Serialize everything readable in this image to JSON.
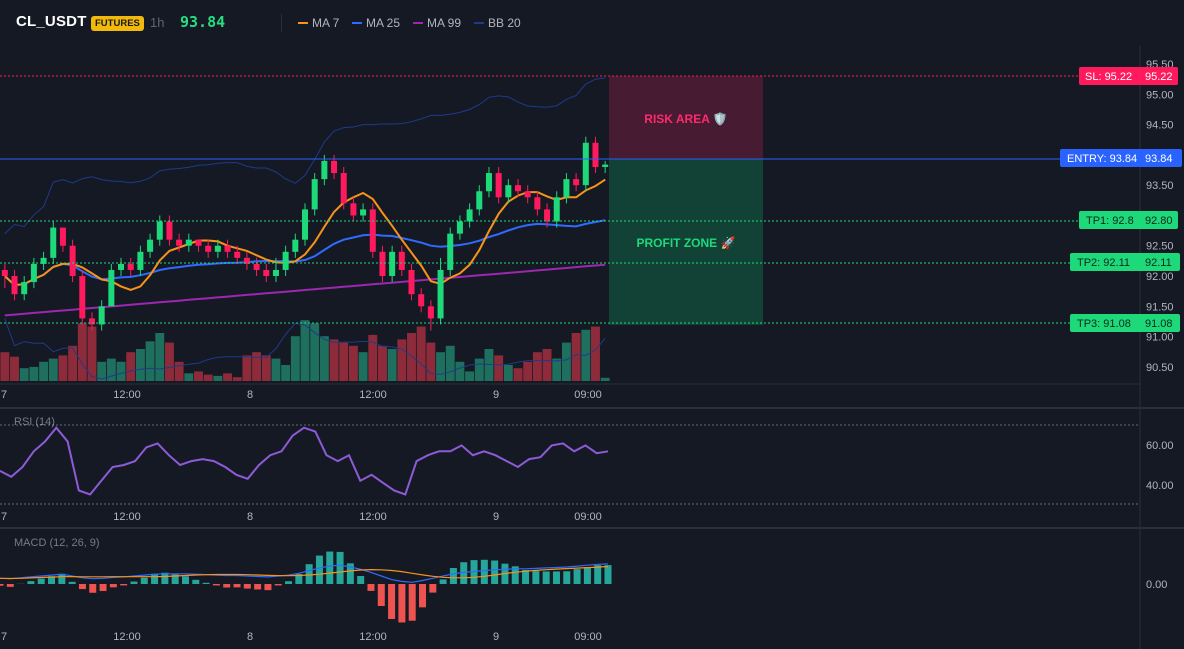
{
  "header": {
    "symbol": "CL_USDT",
    "badge": "FUTURES",
    "timeframe": "1h",
    "last_price": "93.84",
    "legend": [
      {
        "label": "MA 7",
        "color": "#f7931a"
      },
      {
        "label": "MA 25",
        "color": "#2f6bff"
      },
      {
        "label": "MA 99",
        "color": "#9c27b0"
      },
      {
        "label": "BB 20",
        "color": "#1e3a8a"
      }
    ]
  },
  "price_axis": {
    "ticks": [
      "95.50",
      "95.00",
      "94.50",
      "94.00",
      "93.50",
      "93.00",
      "92.50",
      "92.00",
      "91.50",
      "91.00",
      "90.50"
    ]
  },
  "time_axis": {
    "labels": [
      "7",
      "12:00",
      "8",
      "12:00",
      "9",
      "09:00"
    ]
  },
  "trade_levels": {
    "sl": {
      "label": "SL: 95.22",
      "value": "95.22",
      "color": "#ff1a5e"
    },
    "entry": {
      "label": "ENTRY: 93.84",
      "value": "93.84",
      "color": "#2962ff"
    },
    "tp1": {
      "label": "TP1: 92.8",
      "value": "92.80",
      "color": "#1ed97a"
    },
    "tp2": {
      "label": "TP2: 92.11",
      "value": "92.11",
      "color": "#1ed97a"
    },
    "tp3": {
      "label": "TP3: 91.08",
      "value": "91.08",
      "color": "#1ed97a"
    }
  },
  "zones": {
    "risk_label": "RISK AREA 🛡️",
    "profit_label": "PROFIT ZONE 🚀"
  },
  "rsi": {
    "title": "RSI (14)",
    "ticks": [
      "60.00",
      "40.00"
    ]
  },
  "macd": {
    "title": "MACD (12, 26, 9)",
    "ticks": [
      "0.00"
    ]
  },
  "colors": {
    "up": "#1ed97a",
    "down": "#ff1a5e",
    "vol_up": "#1f6f5f",
    "vol_down": "#8e2b3a",
    "bg": "#151924"
  },
  "chart_data": {
    "type": "candlestick",
    "candles": [
      [
        92.1,
        92.0,
        92.2,
        91.8
      ],
      [
        92.0,
        91.7,
        92.1,
        91.6
      ],
      [
        91.7,
        91.9,
        92.0,
        91.6
      ],
      [
        91.9,
        92.2,
        92.3,
        91.8
      ],
      [
        92.2,
        92.3,
        92.4,
        92.1
      ],
      [
        92.3,
        92.8,
        92.9,
        92.2
      ],
      [
        92.8,
        92.5,
        92.8,
        92.4
      ],
      [
        92.5,
        92.0,
        92.6,
        91.9
      ],
      [
        92.0,
        91.3,
        92.1,
        91.2
      ],
      [
        91.3,
        91.2,
        91.4,
        91.1
      ],
      [
        91.2,
        91.5,
        91.6,
        91.1
      ],
      [
        91.5,
        92.1,
        92.2,
        91.5
      ],
      [
        92.1,
        92.2,
        92.3,
        92.0
      ],
      [
        92.2,
        92.1,
        92.3,
        92.0
      ],
      [
        92.1,
        92.4,
        92.5,
        92.0
      ],
      [
        92.4,
        92.6,
        92.7,
        92.3
      ],
      [
        92.6,
        92.9,
        93.0,
        92.5
      ],
      [
        92.9,
        92.6,
        93.0,
        92.5
      ],
      [
        92.6,
        92.5,
        92.7,
        92.4
      ],
      [
        92.5,
        92.6,
        92.7,
        92.4
      ],
      [
        92.6,
        92.5,
        92.6,
        92.4
      ],
      [
        92.5,
        92.4,
        92.6,
        92.3
      ],
      [
        92.4,
        92.5,
        92.6,
        92.3
      ],
      [
        92.5,
        92.4,
        92.6,
        92.3
      ],
      [
        92.4,
        92.3,
        92.5,
        92.2
      ],
      [
        92.3,
        92.2,
        92.4,
        92.1
      ],
      [
        92.2,
        92.1,
        92.3,
        92.0
      ],
      [
        92.1,
        92.0,
        92.2,
        91.9
      ],
      [
        92.0,
        92.1,
        92.3,
        91.9
      ],
      [
        92.1,
        92.4,
        92.5,
        92.0
      ],
      [
        92.4,
        92.6,
        92.7,
        92.3
      ],
      [
        92.6,
        93.1,
        93.2,
        92.5
      ],
      [
        93.1,
        93.6,
        93.7,
        93.0
      ],
      [
        93.6,
        93.9,
        94.0,
        93.5
      ],
      [
        93.9,
        93.7,
        94.0,
        93.6
      ],
      [
        93.7,
        93.2,
        93.8,
        93.1
      ],
      [
        93.2,
        93.0,
        93.3,
        92.9
      ],
      [
        93.0,
        93.1,
        93.2,
        92.9
      ],
      [
        93.1,
        92.4,
        93.2,
        92.3
      ],
      [
        92.4,
        92.0,
        92.5,
        91.9
      ],
      [
        92.0,
        92.4,
        92.5,
        91.9
      ],
      [
        92.4,
        92.1,
        92.5,
        92.0
      ],
      [
        92.1,
        91.7,
        92.2,
        91.6
      ],
      [
        91.7,
        91.5,
        91.8,
        91.4
      ],
      [
        91.5,
        91.3,
        91.6,
        91.1
      ],
      [
        91.3,
        92.1,
        92.3,
        91.2
      ],
      [
        92.1,
        92.7,
        92.8,
        92.0
      ],
      [
        92.7,
        92.9,
        93.0,
        92.6
      ],
      [
        92.9,
        93.1,
        93.2,
        92.8
      ],
      [
        93.1,
        93.4,
        93.5,
        93.0
      ],
      [
        93.4,
        93.7,
        93.8,
        93.3
      ],
      [
        93.7,
        93.3,
        93.8,
        93.2
      ],
      [
        93.3,
        93.5,
        93.6,
        93.2
      ],
      [
        93.5,
        93.4,
        93.6,
        93.3
      ],
      [
        93.4,
        93.3,
        93.5,
        93.2
      ],
      [
        93.3,
        93.1,
        93.4,
        93.0
      ],
      [
        93.1,
        92.9,
        93.2,
        92.8
      ],
      [
        92.9,
        93.3,
        93.4,
        92.8
      ],
      [
        93.3,
        93.6,
        93.7,
        93.2
      ],
      [
        93.6,
        93.5,
        93.7,
        93.4
      ],
      [
        93.5,
        94.2,
        94.3,
        93.4
      ],
      [
        94.2,
        93.8,
        94.3,
        93.7
      ],
      [
        93.8,
        93.84,
        93.9,
        93.7
      ]
    ],
    "volumes": [
      0.45,
      0.38,
      0.2,
      0.22,
      0.3,
      0.35,
      0.4,
      0.55,
      0.9,
      0.85,
      0.3,
      0.35,
      0.3,
      0.45,
      0.5,
      0.62,
      0.75,
      0.6,
      0.3,
      0.12,
      0.15,
      0.1,
      0.08,
      0.12,
      0.06,
      0.4,
      0.45,
      0.4,
      0.35,
      0.25,
      0.7,
      0.95,
      0.9,
      0.7,
      0.65,
      0.6,
      0.55,
      0.45,
      0.72,
      0.55,
      0.5,
      0.65,
      0.75,
      0.85,
      0.6,
      0.45,
      0.55,
      0.3,
      0.15,
      0.35,
      0.5,
      0.4,
      0.25,
      0.2,
      0.3,
      0.45,
      0.5,
      0.35,
      0.6,
      0.75,
      0.8,
      0.85,
      0.05
    ],
    "rsi": [
      50,
      47,
      52,
      60,
      65,
      72,
      65,
      40,
      38,
      45,
      52,
      53,
      55,
      62,
      64,
      58,
      53,
      55,
      56,
      55,
      52,
      48,
      46,
      53,
      58,
      60,
      68,
      72,
      70,
      58,
      55,
      58,
      45,
      48,
      44,
      40,
      38,
      55,
      58,
      60,
      60,
      63,
      58,
      60,
      58,
      55,
      52,
      56,
      57,
      63,
      64,
      60,
      63,
      59,
      60
    ],
    "macd": [
      -0.05,
      -0.06,
      -0.04,
      -0.02,
      0.0,
      0.02,
      0.04,
      0.0,
      -0.04,
      -0.06,
      -0.05,
      -0.03,
      -0.02,
      0.0,
      0.02,
      0.04,
      0.05,
      0.05,
      0.05,
      0.04,
      0.03,
      0.02,
      0.01,
      0.01,
      0.0,
      -0.01,
      -0.02,
      0.0,
      0.02,
      0.06,
      0.12,
      0.18,
      0.22,
      0.24,
      0.2,
      0.15,
      0.08,
      0.0,
      -0.08,
      -0.12,
      -0.14,
      -0.1,
      -0.05,
      0.0,
      0.05,
      0.08,
      0.1,
      0.12,
      0.14,
      0.15,
      0.16,
      0.16,
      0.17,
      0.18,
      0.19,
      0.2,
      0.22,
      0.24,
      0.26,
      0.27
    ]
  }
}
